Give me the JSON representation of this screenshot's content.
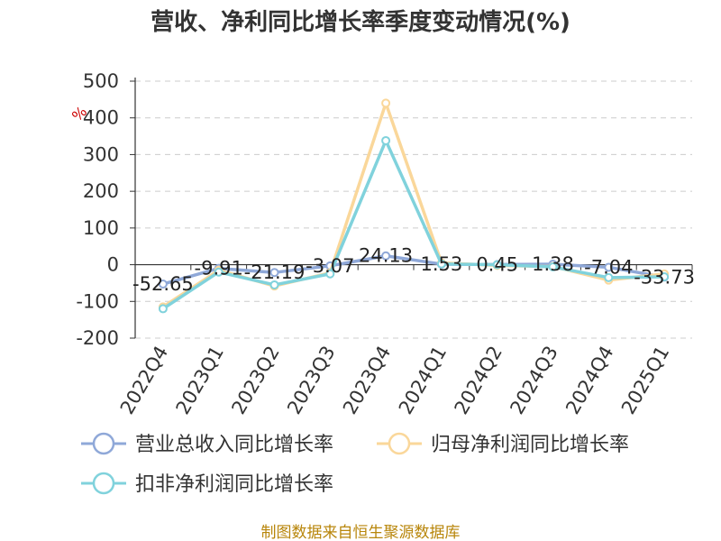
{
  "chart_data": {
    "type": "line",
    "title": "营收、净利同比增长率季度变动情况(%)",
    "ylabel": "%",
    "xlabel": "",
    "categories": [
      "2022Q4",
      "2023Q1",
      "2023Q2",
      "2023Q3",
      "2023Q4",
      "2024Q1",
      "2024Q2",
      "2024Q3",
      "2024Q4",
      "2025Q1"
    ],
    "ylim": [
      -200,
      500
    ],
    "yticks": [
      "500",
      "400",
      "300",
      "200",
      "100",
      "0",
      "-100",
      "-200"
    ],
    "grid": true,
    "legend_position": "bottom",
    "series": [
      {
        "name": "营业总收入同比增长率",
        "color": "#8fa8d8",
        "values": [
          -52.65,
          -9.91,
          -21.19,
          -3.07,
          24.13,
          1.53,
          0.45,
          1.38,
          -7.04,
          -33.73
        ],
        "labels": [
          "-52.65",
          "-9.91",
          "-21.19",
          "-3.07",
          "24.13",
          "1.53",
          "0.45",
          "1.38",
          "-7.04",
          "-33.73"
        ]
      },
      {
        "name": "归母净利润同比增长率",
        "color": "#fad79a",
        "values": [
          -115,
          -15,
          -58,
          -22,
          440,
          5,
          -2,
          -5,
          -42,
          -25
        ]
      },
      {
        "name": "扣非净利润同比增长率",
        "color": "#80d2dc",
        "values": [
          -120,
          -20,
          -55,
          -25,
          338,
          2,
          0,
          -6,
          -35,
          -33
        ]
      }
    ]
  },
  "source": "制图数据来自恒生聚源数据库"
}
